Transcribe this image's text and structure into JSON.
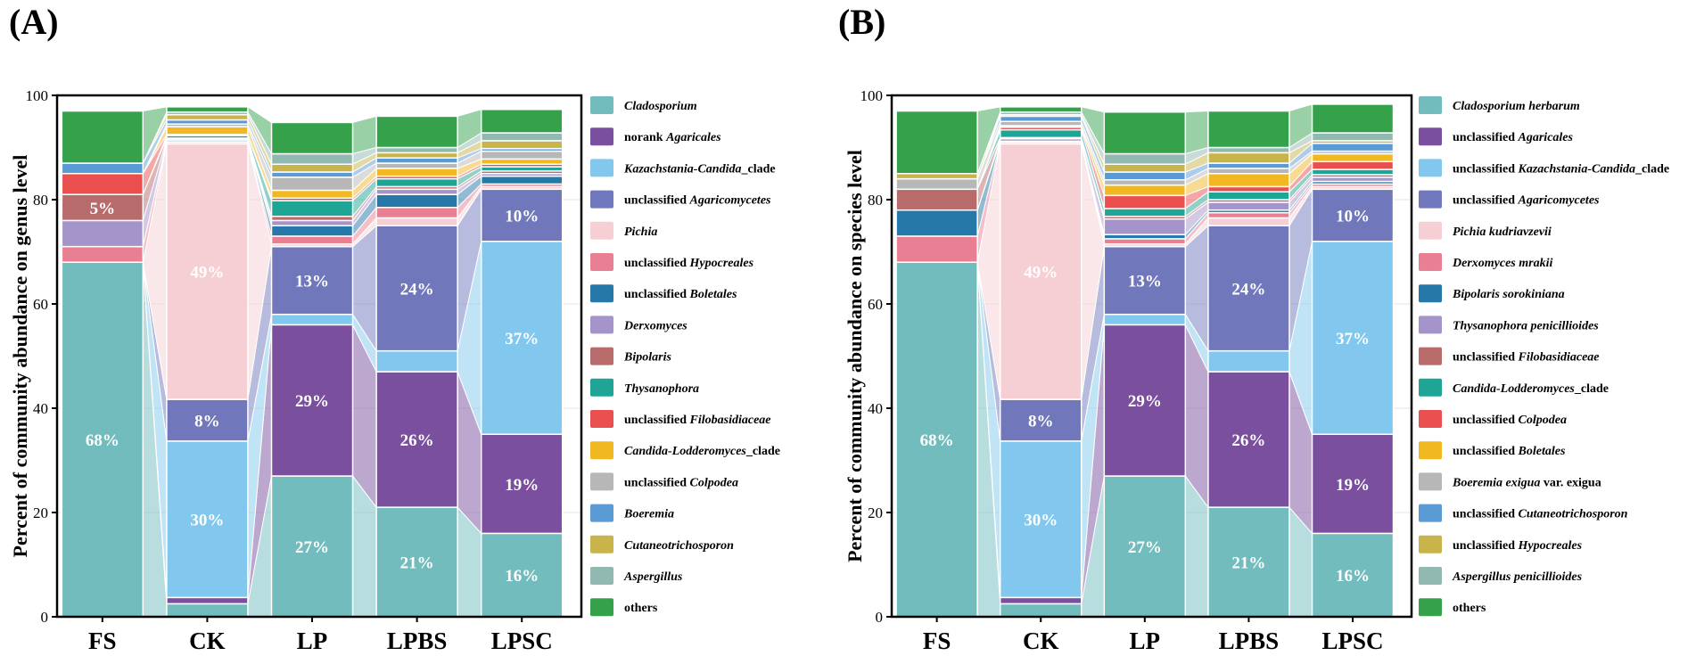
{
  "colors": {
    "c01": "#72bcbd",
    "c02": "#7a4f9e",
    "c03": "#82c8ee",
    "c04": "#7078bb",
    "c05": "#f6cfd4",
    "c06": "#e97f92",
    "c07": "#2578a7",
    "c08": "#a594c9",
    "c09": "#b86b6b",
    "c10": "#1fa595",
    "c11": "#e94f4f",
    "c12": "#f2b821",
    "c13": "#b7b7b7",
    "c14": "#5b9bd5",
    "c15": "#c8b44a",
    "c16": "#92b8b2",
    "c17": "#35a24b"
  },
  "chart_data": [
    {
      "panel": "(A)",
      "type": "stacked-bar",
      "ylabel": "Percent of community abundance on genus level",
      "ylim": [
        0,
        100
      ],
      "yticks": [
        "0",
        "20",
        "40",
        "60",
        "80",
        "100"
      ],
      "categories": [
        "FS",
        "CK",
        "LP",
        "LPBS",
        "LPSC"
      ],
      "series": [
        {
          "name": "Cladosporium",
          "color": "c01",
          "values": [
            68,
            2.5,
            27,
            21,
            16
          ],
          "labels": [
            "68%",
            "",
            "27%",
            "21%",
            "16%"
          ]
        },
        {
          "name": "norank Agaricales",
          "color": "c02",
          "values": [
            0,
            1.2,
            29,
            26,
            19
          ],
          "labels": [
            "",
            "",
            "29%",
            "26%",
            "19%"
          ]
        },
        {
          "name": "Kazachstania-Candida_clade",
          "color": "c03",
          "values": [
            0,
            30,
            2,
            4,
            37
          ],
          "labels": [
            "",
            "30%",
            "",
            "",
            "37%"
          ]
        },
        {
          "name": "unclassified Agaricomycetes",
          "color": "c04",
          "values": [
            0,
            8,
            13,
            24,
            10
          ],
          "labels": [
            "",
            "8%",
            "13%",
            "24%",
            "10%"
          ]
        },
        {
          "name": "Pichia",
          "color": "c05",
          "values": [
            0,
            49,
            0.5,
            1.5,
            0.5
          ],
          "labels": [
            "",
            "49%",
            "",
            "",
            ""
          ]
        },
        {
          "name": "unclassified Hypocreales",
          "color": "c06",
          "values": [
            3,
            0.3,
            1.5,
            2,
            0.5
          ],
          "labels": [
            "",
            "",
            "",
            "",
            ""
          ]
        },
        {
          "name": "unclassified Boletales",
          "color": "c07",
          "values": [
            0,
            0.3,
            2,
            2.5,
            1.5
          ],
          "labels": [
            "",
            "",
            "",
            "",
            ""
          ]
        },
        {
          "name": "Derxomyces",
          "color": "c08",
          "values": [
            5,
            0.3,
            1,
            1,
            0.5
          ],
          "labels": [
            "",
            "",
            "",
            "",
            ""
          ]
        },
        {
          "name": "Bipolaris",
          "color": "c09",
          "values": [
            5,
            0.2,
            0.8,
            0.5,
            0.5
          ],
          "labels": [
            "5%",
            "",
            "",
            "",
            ""
          ]
        },
        {
          "name": "Thysanophora",
          "color": "c10",
          "values": [
            0,
            0.5,
            3,
            1.5,
            0.8
          ],
          "labels": [
            "",
            "",
            "",
            "",
            ""
          ]
        },
        {
          "name": "unclassified Filobasidiaceae",
          "color": "c11",
          "values": [
            4,
            0.2,
            0.5,
            0.5,
            0.5
          ],
          "labels": [
            "",
            "",
            "",
            "",
            ""
          ]
        },
        {
          "name": "Candida-Lodderomyces_clade",
          "color": "c12",
          "values": [
            0,
            1.5,
            1.5,
            1.5,
            1
          ],
          "labels": [
            "",
            "",
            "",
            "",
            ""
          ]
        },
        {
          "name": "unclassified Colpodea",
          "color": "c13",
          "values": [
            0,
            0.5,
            2.5,
            1,
            1.5
          ],
          "labels": [
            "",
            "",
            "",
            "",
            ""
          ]
        },
        {
          "name": "Boeremia",
          "color": "c14",
          "values": [
            2,
            0.8,
            1,
            1,
            0.5
          ],
          "labels": [
            "",
            "",
            "",
            "",
            ""
          ]
        },
        {
          "name": "Cutaneotrichosporon",
          "color": "c15",
          "values": [
            0,
            1,
            1.5,
            1,
            1.5
          ],
          "labels": [
            "",
            "",
            "",
            "",
            ""
          ]
        },
        {
          "name": "Aspergillus",
          "color": "c16",
          "values": [
            0,
            0.5,
            2,
            1,
            1.5
          ],
          "labels": [
            "",
            "",
            "",
            "",
            ""
          ]
        },
        {
          "name": "others",
          "color": "c17",
          "values": [
            10,
            1,
            6,
            6,
            4.5
          ],
          "labels": [
            "",
            "",
            "",
            "",
            ""
          ]
        }
      ],
      "legend_italic": [
        [
          {
            "t": "Cladosporium",
            "i": true
          }
        ],
        [
          {
            "t": "norank ",
            "i": false
          },
          {
            "t": "Agaricales",
            "i": true
          }
        ],
        [
          {
            "t": "Kazachstania-Candida",
            "i": true
          },
          {
            "t": "_clade",
            "i": false
          }
        ],
        [
          {
            "t": "unclassified ",
            "i": false
          },
          {
            "t": "Agaricomycetes",
            "i": true
          }
        ],
        [
          {
            "t": "Pichia",
            "i": true
          }
        ],
        [
          {
            "t": "unclassified ",
            "i": false
          },
          {
            "t": "Hypocreales",
            "i": true
          }
        ],
        [
          {
            "t": "unclassified ",
            "i": false
          },
          {
            "t": "Boletales",
            "i": true
          }
        ],
        [
          {
            "t": "Derxomyces",
            "i": true
          }
        ],
        [
          {
            "t": "Bipolaris",
            "i": true
          }
        ],
        [
          {
            "t": "Thysanophora",
            "i": true
          }
        ],
        [
          {
            "t": "unclassified ",
            "i": false
          },
          {
            "t": "Filobasidiaceae",
            "i": true
          }
        ],
        [
          {
            "t": "Candida-Lodderomyces",
            "i": true
          },
          {
            "t": "_clade",
            "i": false
          }
        ],
        [
          {
            "t": "unclassified ",
            "i": false
          },
          {
            "t": "Colpodea",
            "i": true
          }
        ],
        [
          {
            "t": "Boeremia",
            "i": true
          }
        ],
        [
          {
            "t": "Cutaneotrichosporon",
            "i": true
          }
        ],
        [
          {
            "t": "Aspergillus",
            "i": true
          }
        ],
        [
          {
            "t": "others",
            "i": false
          }
        ]
      ]
    },
    {
      "panel": "(B)",
      "type": "stacked-bar",
      "ylabel": "Percent of community abundance on species level",
      "ylim": [
        0,
        100
      ],
      "yticks": [
        "0",
        "20",
        "40",
        "60",
        "80",
        "100"
      ],
      "categories": [
        "FS",
        "CK",
        "LP",
        "LPBS",
        "LPSC"
      ],
      "series": [
        {
          "name": "Cladosporium herbarum",
          "color": "c01",
          "values": [
            68,
            2.5,
            27,
            21,
            16
          ],
          "labels": [
            "68%",
            "",
            "27%",
            "21%",
            "16%"
          ]
        },
        {
          "name": "unclassified Agaricales",
          "color": "c02",
          "values": [
            0,
            1.2,
            29,
            26,
            19
          ],
          "labels": [
            "",
            "",
            "29%",
            "26%",
            "19%"
          ]
        },
        {
          "name": "unclassified Kazachstania-Candida_clade",
          "color": "c03",
          "values": [
            0,
            30,
            2,
            4,
            37
          ],
          "labels": [
            "",
            "30%",
            "",
            "",
            "37%"
          ]
        },
        {
          "name": "unclassified Agaricomycetes",
          "color": "c04",
          "values": [
            0,
            8,
            13,
            24,
            10
          ],
          "labels": [
            "",
            "8%",
            "13%",
            "24%",
            "10%"
          ]
        },
        {
          "name": "Pichia kudriavzevii",
          "color": "c05",
          "values": [
            0,
            49,
            0.5,
            1.5,
            0.5
          ],
          "labels": [
            "",
            "49%",
            "",
            "",
            ""
          ]
        },
        {
          "name": "Derxomyces mrakii",
          "color": "c06",
          "values": [
            5,
            0.3,
            1,
            1,
            0.5
          ],
          "labels": [
            "",
            "",
            "",
            "",
            ""
          ]
        },
        {
          "name": "Bipolaris sorokiniana",
          "color": "c07",
          "values": [
            5,
            0.2,
            0.8,
            0.5,
            0.5
          ],
          "labels": [
            "",
            "",
            "",
            "",
            ""
          ]
        },
        {
          "name": "Thysanophora penicillioides",
          "color": "c08",
          "values": [
            0,
            0.5,
            3,
            1.5,
            0.8
          ],
          "labels": [
            "",
            "",
            "",
            "",
            ""
          ]
        },
        {
          "name": "unclassified Filobasidiaceae",
          "color": "c09",
          "values": [
            4,
            0.2,
            0.5,
            0.5,
            0.5
          ],
          "labels": [
            "",
            "",
            "",
            "",
            ""
          ]
        },
        {
          "name": "Candida-Lodderomyces_clade",
          "color": "c10",
          "values": [
            0,
            1.5,
            1.5,
            1.5,
            1
          ],
          "labels": [
            "",
            "",
            "",
            "",
            ""
          ]
        },
        {
          "name": "unclassified Colpodea",
          "color": "c11",
          "values": [
            0,
            0.5,
            2.5,
            1,
            1.5
          ],
          "labels": [
            "",
            "",
            "",
            "",
            ""
          ]
        },
        {
          "name": "unclassified Boletales",
          "color": "c12",
          "values": [
            0,
            0.3,
            2,
            2.5,
            1.5
          ],
          "labels": [
            "",
            "",
            "",
            "",
            ""
          ]
        },
        {
          "name": "Boeremia exigua var. exigua",
          "color": "c13",
          "values": [
            2,
            0.8,
            1,
            1,
            0.5
          ],
          "labels": [
            "",
            "",
            "",
            "",
            ""
          ]
        },
        {
          "name": "unclassified Cutaneotrichosporon",
          "color": "c14",
          "values": [
            0,
            1,
            1.5,
            1,
            1.5
          ],
          "labels": [
            "",
            "",
            "",
            "",
            ""
          ]
        },
        {
          "name": "unclassified Hypocreales",
          "color": "c15",
          "values": [
            1,
            0.3,
            1.5,
            2,
            0.5
          ],
          "labels": [
            "",
            "",
            "",
            "",
            ""
          ]
        },
        {
          "name": "Aspergillus penicillioides",
          "color": "c16",
          "values": [
            0,
            0.5,
            2,
            1,
            1.5
          ],
          "labels": [
            "",
            "",
            "",
            "",
            ""
          ]
        },
        {
          "name": "others",
          "color": "c17",
          "values": [
            12,
            1,
            8,
            7,
            5.5
          ],
          "labels": [
            "",
            "",
            "",
            "",
            ""
          ]
        }
      ],
      "legend_italic": [
        [
          {
            "t": "Cladosporium herbarum",
            "i": true
          }
        ],
        [
          {
            "t": "unclassified ",
            "i": false
          },
          {
            "t": "Agaricales",
            "i": true
          }
        ],
        [
          {
            "t": "unclassified ",
            "i": false
          },
          {
            "t": "Kazachstania-Candida",
            "i": true
          },
          {
            "t": "_clade",
            "i": false
          }
        ],
        [
          {
            "t": "unclassified ",
            "i": false
          },
          {
            "t": "Agaricomycetes",
            "i": true
          }
        ],
        [
          {
            "t": "Pichia kudriavzevii",
            "i": true
          }
        ],
        [
          {
            "t": "Derxomyces mrakii",
            "i": true
          }
        ],
        [
          {
            "t": "Bipolaris sorokiniana",
            "i": true
          }
        ],
        [
          {
            "t": "Thysanophora penicillioides",
            "i": true
          }
        ],
        [
          {
            "t": "unclassified ",
            "i": false
          },
          {
            "t": "Filobasidiaceae",
            "i": true
          }
        ],
        [
          {
            "t": "Candida-Lodderomyces",
            "i": true
          },
          {
            "t": "_clade",
            "i": false
          }
        ],
        [
          {
            "t": "unclassified ",
            "i": false
          },
          {
            "t": "Colpodea",
            "i": true
          }
        ],
        [
          {
            "t": "unclassified ",
            "i": false
          },
          {
            "t": "Boletales",
            "i": true
          }
        ],
        [
          {
            "t": "Boeremia exigua",
            "i": true
          },
          {
            "t": " var. exigua",
            "i": false
          }
        ],
        [
          {
            "t": "unclassified ",
            "i": false
          },
          {
            "t": "Cutaneotrichosporon",
            "i": true
          }
        ],
        [
          {
            "t": "unclassified ",
            "i": false
          },
          {
            "t": "Hypocreales",
            "i": true
          }
        ],
        [
          {
            "t": "Aspergillus penicillioides",
            "i": true
          }
        ],
        [
          {
            "t": "others",
            "i": false
          }
        ]
      ]
    }
  ]
}
